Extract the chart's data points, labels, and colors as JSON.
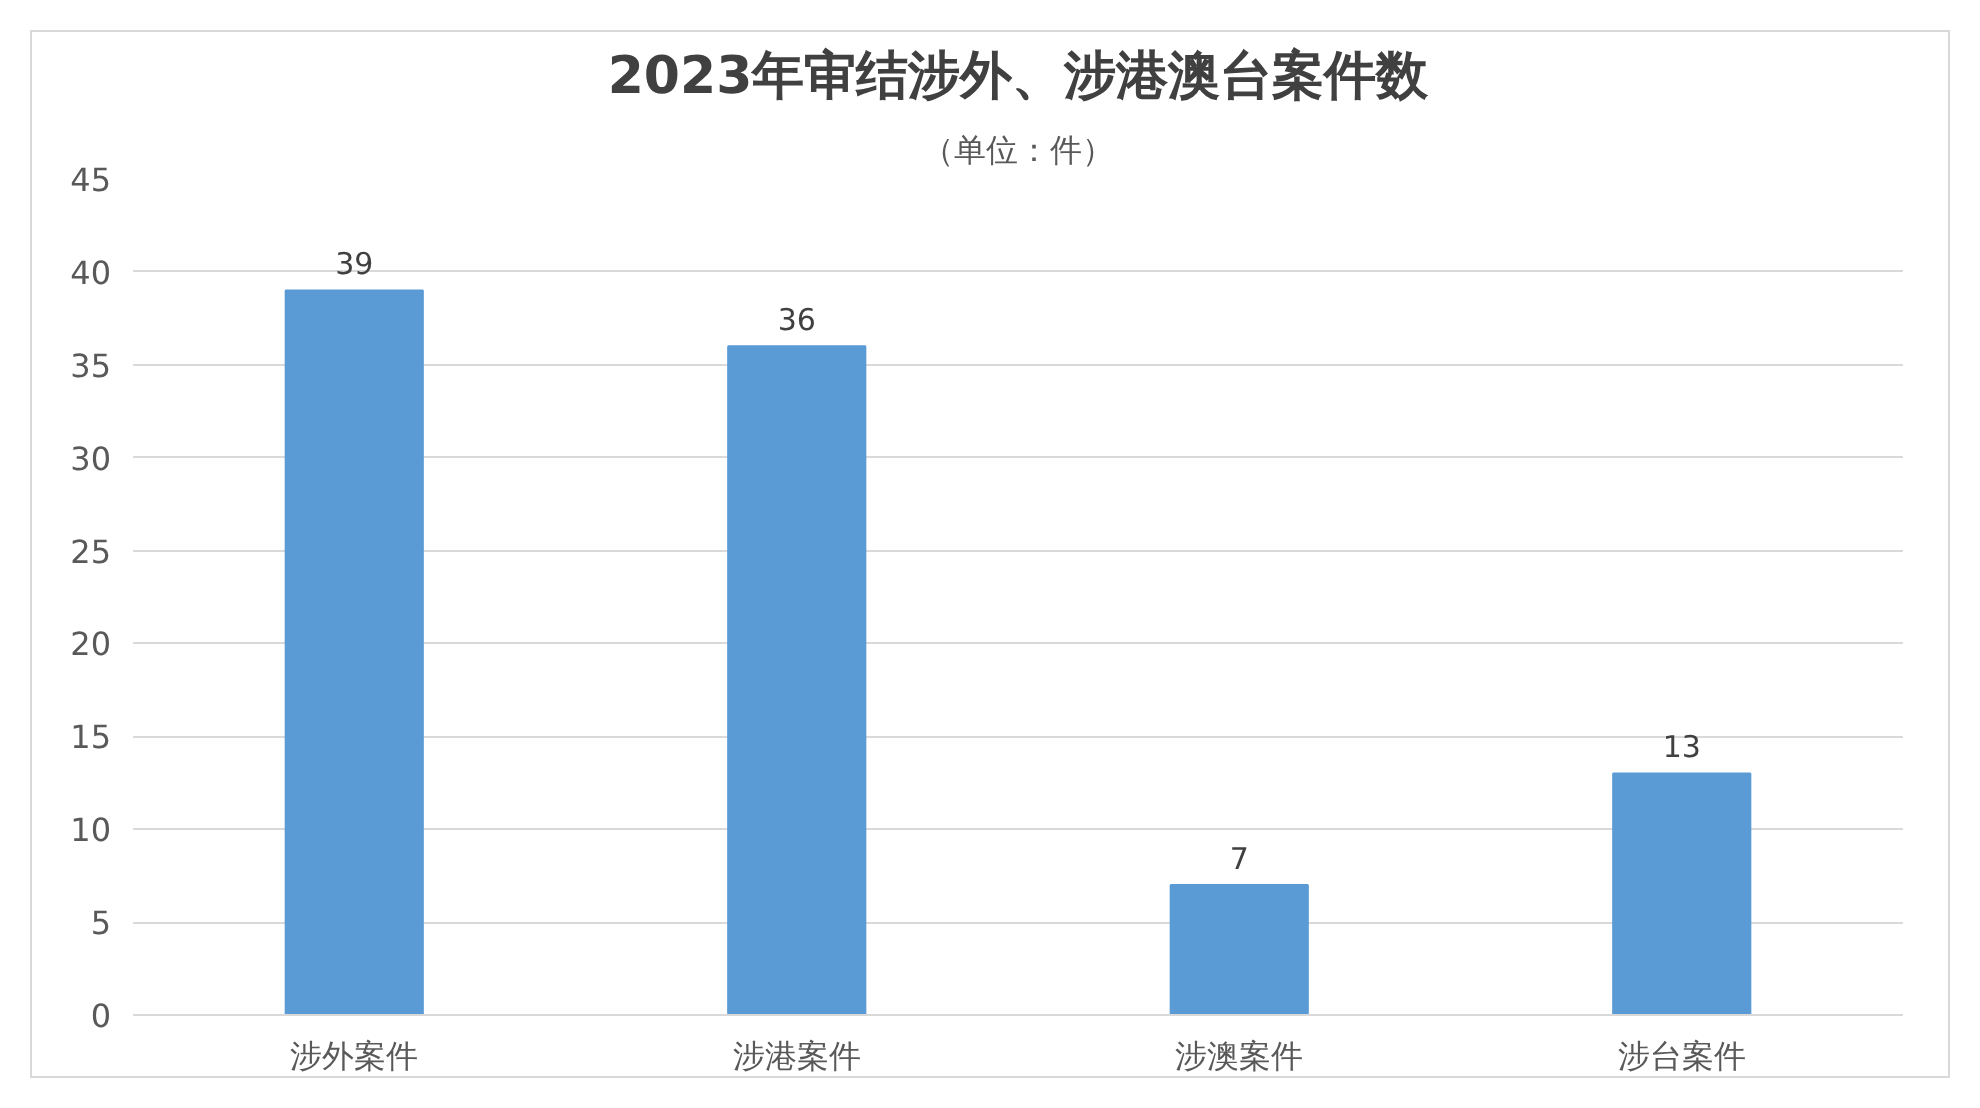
{
  "chart_data": {
    "type": "bar",
    "title": "2023年审结涉外、涉港澳台案件数",
    "subtitle": "（单位：件）",
    "categories": [
      "涉外案件",
      "涉港案件",
      "涉澳案件",
      "涉台案件"
    ],
    "values": [
      39,
      36,
      7,
      13
    ],
    "color": "#5b9bd5",
    "ylim": [
      0,
      45
    ],
    "yticks": [
      0,
      5,
      10,
      15,
      20,
      25,
      30,
      35,
      40,
      45
    ],
    "grid": "y",
    "data_labels": true
  }
}
